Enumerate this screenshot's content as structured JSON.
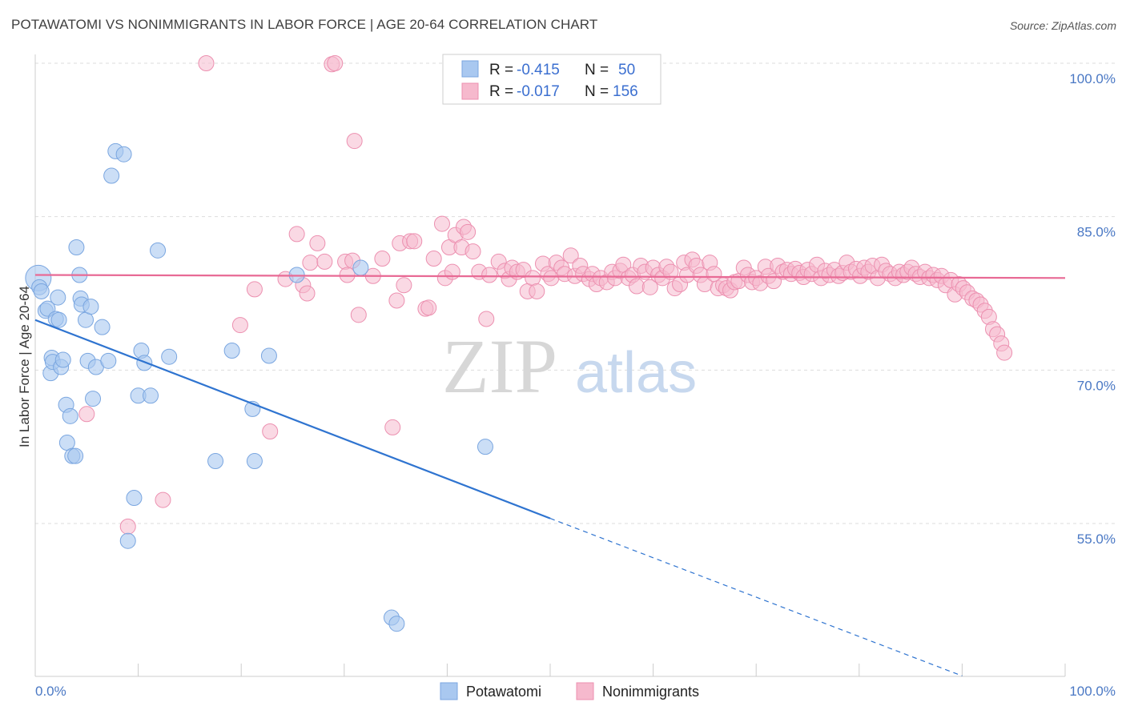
{
  "header": {
    "title": "POTAWATOMI VS NONIMMIGRANTS IN LABOR FORCE | AGE 20-64 CORRELATION CHART",
    "source": "Source: ZipAtlas.com"
  },
  "watermark": {
    "zip": "ZIP",
    "atlas": "atlas"
  },
  "colors": {
    "blue_fill": "#a9c8f0",
    "blue_stroke": "#7aa6e0",
    "blue_line": "#2f74d0",
    "pink_fill": "#f6b9cd",
    "pink_stroke": "#ec90b0",
    "pink_line": "#e86a95",
    "grid": "#dddddd",
    "tick_text": "#4a78c4"
  },
  "legend": {
    "rows": [
      {
        "r_label": "R =",
        "r_value": "-0.415",
        "n_label": "N =",
        "n_value": "50"
      },
      {
        "r_label": "R =",
        "r_value": "-0.017",
        "n_label": "N =",
        "n_value": "156"
      }
    ]
  },
  "chart_data": {
    "type": "scatter",
    "title": "POTAWATOMI VS NONIMMIGRANTS IN LABOR FORCE | AGE 20-64 CORRELATION CHART",
    "xlabel": "",
    "ylabel": "In Labor Force | Age 20-64",
    "xlim": [
      0,
      100
    ],
    "ylim": [
      43,
      101
    ],
    "x_tick_labels": [
      "0.0%",
      "100.0%"
    ],
    "y_ticks": [
      55,
      70,
      85,
      100
    ],
    "y_tick_labels": [
      "55.0%",
      "70.0%",
      "85.0%",
      "100.0%"
    ],
    "grid": true,
    "legend_position": "top-center",
    "series": [
      {
        "name": "Potawatomi",
        "color": "#a9c8f0",
        "r": -0.415,
        "n": 50,
        "trend": {
          "x": [
            0,
            50,
            90
          ],
          "y": [
            74.9,
            55.5,
            40.1
          ],
          "solid_until_x": 50
        },
        "points": [
          [
            0.3,
            79.0
          ],
          [
            0.4,
            78.1
          ],
          [
            0.6,
            77.7
          ],
          [
            1.0,
            75.8
          ],
          [
            1.2,
            76.0
          ],
          [
            1.5,
            69.7
          ],
          [
            1.6,
            71.2
          ],
          [
            1.7,
            70.8
          ],
          [
            2.0,
            75.0
          ],
          [
            2.2,
            77.1
          ],
          [
            2.3,
            74.9
          ],
          [
            2.5,
            70.3
          ],
          [
            2.7,
            71.0
          ],
          [
            3.0,
            66.6
          ],
          [
            3.1,
            62.9
          ],
          [
            3.4,
            65.5
          ],
          [
            3.6,
            61.6
          ],
          [
            3.9,
            61.6
          ],
          [
            4.0,
            82.0
          ],
          [
            4.3,
            79.3
          ],
          [
            4.4,
            77.0
          ],
          [
            4.5,
            76.4
          ],
          [
            4.9,
            74.9
          ],
          [
            5.1,
            70.9
          ],
          [
            5.4,
            76.2
          ],
          [
            5.6,
            67.2
          ],
          [
            5.9,
            70.3
          ],
          [
            6.5,
            74.2
          ],
          [
            7.1,
            70.9
          ],
          [
            7.4,
            89.0
          ],
          [
            7.8,
            91.4
          ],
          [
            8.6,
            91.1
          ],
          [
            9.0,
            53.3
          ],
          [
            9.6,
            57.5
          ],
          [
            10.0,
            67.5
          ],
          [
            10.3,
            71.9
          ],
          [
            10.6,
            70.7
          ],
          [
            11.2,
            67.5
          ],
          [
            11.9,
            81.7
          ],
          [
            13.0,
            71.3
          ],
          [
            17.5,
            61.1
          ],
          [
            19.1,
            71.9
          ],
          [
            21.1,
            66.2
          ],
          [
            21.3,
            61.1
          ],
          [
            22.7,
            71.4
          ],
          [
            25.4,
            79.3
          ],
          [
            31.6,
            80.0
          ],
          [
            34.6,
            45.8
          ],
          [
            35.1,
            45.2
          ],
          [
            43.7,
            62.5
          ]
        ]
      },
      {
        "name": "Nonimmigrants",
        "color": "#f6b9cd",
        "r": -0.017,
        "n": 156,
        "trend": {
          "x": [
            0,
            100
          ],
          "y": [
            79.3,
            79.0
          ]
        },
        "points": [
          [
            5.0,
            65.7
          ],
          [
            9.0,
            54.7
          ],
          [
            12.4,
            57.3
          ],
          [
            16.6,
            100.0
          ],
          [
            19.9,
            74.4
          ],
          [
            21.3,
            77.9
          ],
          [
            22.8,
            64.0
          ],
          [
            24.3,
            78.9
          ],
          [
            25.4,
            83.3
          ],
          [
            26.0,
            78.3
          ],
          [
            26.4,
            77.5
          ],
          [
            26.7,
            80.5
          ],
          [
            27.4,
            82.4
          ],
          [
            28.1,
            80.6
          ],
          [
            28.8,
            99.9
          ],
          [
            29.1,
            100.0
          ],
          [
            30.1,
            80.6
          ],
          [
            30.3,
            79.3
          ],
          [
            30.8,
            80.7
          ],
          [
            31.0,
            92.4
          ],
          [
            31.4,
            75.4
          ],
          [
            32.8,
            79.2
          ],
          [
            33.7,
            80.9
          ],
          [
            34.7,
            64.4
          ],
          [
            35.1,
            76.8
          ],
          [
            35.4,
            82.4
          ],
          [
            35.8,
            78.3
          ],
          [
            36.4,
            82.6
          ],
          [
            36.8,
            82.6
          ],
          [
            37.9,
            76.0
          ],
          [
            38.2,
            76.1
          ],
          [
            38.7,
            80.9
          ],
          [
            39.5,
            84.3
          ],
          [
            39.8,
            79.0
          ],
          [
            40.2,
            82.0
          ],
          [
            40.5,
            79.6
          ],
          [
            40.8,
            83.2
          ],
          [
            41.4,
            82.0
          ],
          [
            41.6,
            84.0
          ],
          [
            42.0,
            83.5
          ],
          [
            42.5,
            81.6
          ],
          [
            43.1,
            79.6
          ],
          [
            43.8,
            75.0
          ],
          [
            44.1,
            79.3
          ],
          [
            45.0,
            80.6
          ],
          [
            45.6,
            79.7
          ],
          [
            46.0,
            78.9
          ],
          [
            46.3,
            80.0
          ],
          [
            46.8,
            79.6
          ],
          [
            47.4,
            79.8
          ],
          [
            47.8,
            77.7
          ],
          [
            48.3,
            79.0
          ],
          [
            48.7,
            77.7
          ],
          [
            49.3,
            80.4
          ],
          [
            49.8,
            79.4
          ],
          [
            50.1,
            79.0
          ],
          [
            50.6,
            80.5
          ],
          [
            51.1,
            80.0
          ],
          [
            51.4,
            79.4
          ],
          [
            52.0,
            81.2
          ],
          [
            52.4,
            79.2
          ],
          [
            52.9,
            80.2
          ],
          [
            53.2,
            79.4
          ],
          [
            53.8,
            78.9
          ],
          [
            54.1,
            79.4
          ],
          [
            54.5,
            78.4
          ],
          [
            54.9,
            79.0
          ],
          [
            55.5,
            78.6
          ],
          [
            56.0,
            79.6
          ],
          [
            56.3,
            79.0
          ],
          [
            56.8,
            79.7
          ],
          [
            57.1,
            80.3
          ],
          [
            57.6,
            79.0
          ],
          [
            58.0,
            79.3
          ],
          [
            58.4,
            78.2
          ],
          [
            58.8,
            80.2
          ],
          [
            59.2,
            79.6
          ],
          [
            59.7,
            78.1
          ],
          [
            60.0,
            80.0
          ],
          [
            60.5,
            79.3
          ],
          [
            60.9,
            79.0
          ],
          [
            61.3,
            80.1
          ],
          [
            61.7,
            79.6
          ],
          [
            62.1,
            78.0
          ],
          [
            62.6,
            78.4
          ],
          [
            63.0,
            80.5
          ],
          [
            63.3,
            79.3
          ],
          [
            63.8,
            80.8
          ],
          [
            64.2,
            80.2
          ],
          [
            64.6,
            79.3
          ],
          [
            65.0,
            78.4
          ],
          [
            65.5,
            80.5
          ],
          [
            65.9,
            79.4
          ],
          [
            66.3,
            78.0
          ],
          [
            66.8,
            78.3
          ],
          [
            67.1,
            78.0
          ],
          [
            67.5,
            77.8
          ],
          [
            67.9,
            78.6
          ],
          [
            68.3,
            78.7
          ],
          [
            68.8,
            80.0
          ],
          [
            69.2,
            79.3
          ],
          [
            69.6,
            78.6
          ],
          [
            70.0,
            79.0
          ],
          [
            70.4,
            78.5
          ],
          [
            70.9,
            80.1
          ],
          [
            71.2,
            79.2
          ],
          [
            71.7,
            78.7
          ],
          [
            72.1,
            80.2
          ],
          [
            72.6,
            79.6
          ],
          [
            73.0,
            79.8
          ],
          [
            73.4,
            79.4
          ],
          [
            73.8,
            79.9
          ],
          [
            74.2,
            79.5
          ],
          [
            74.6,
            79.1
          ],
          [
            75.0,
            79.8
          ],
          [
            75.4,
            79.4
          ],
          [
            75.9,
            80.3
          ],
          [
            76.3,
            79.0
          ],
          [
            76.7,
            79.7
          ],
          [
            77.1,
            79.3
          ],
          [
            77.6,
            79.8
          ],
          [
            78.0,
            79.2
          ],
          [
            78.4,
            79.5
          ],
          [
            78.8,
            80.5
          ],
          [
            79.2,
            79.6
          ],
          [
            79.7,
            79.9
          ],
          [
            80.1,
            79.2
          ],
          [
            80.5,
            80.0
          ],
          [
            80.9,
            79.6
          ],
          [
            81.3,
            80.2
          ],
          [
            81.8,
            79.0
          ],
          [
            82.2,
            80.3
          ],
          [
            82.6,
            79.7
          ],
          [
            83.0,
            79.4
          ],
          [
            83.5,
            79.0
          ],
          [
            83.9,
            79.6
          ],
          [
            84.3,
            79.3
          ],
          [
            84.7,
            79.6
          ],
          [
            85.1,
            80.0
          ],
          [
            85.5,
            79.4
          ],
          [
            85.9,
            79.1
          ],
          [
            86.4,
            79.6
          ],
          [
            86.8,
            79.0
          ],
          [
            87.2,
            79.3
          ],
          [
            87.6,
            78.8
          ],
          [
            88.0,
            79.2
          ],
          [
            88.4,
            78.3
          ],
          [
            88.9,
            78.8
          ],
          [
            89.3,
            77.4
          ],
          [
            89.7,
            78.4
          ],
          [
            90.1,
            78.0
          ],
          [
            90.5,
            77.6
          ],
          [
            91.0,
            77.0
          ],
          [
            91.4,
            76.8
          ],
          [
            91.8,
            76.4
          ],
          [
            92.2,
            75.8
          ],
          [
            92.6,
            75.2
          ],
          [
            93.0,
            74.0
          ],
          [
            93.4,
            73.5
          ],
          [
            93.8,
            72.6
          ],
          [
            94.1,
            71.7
          ]
        ]
      }
    ]
  },
  "bottom_legend": {
    "items": [
      "Potawatomi",
      "Nonimmigrants"
    ]
  }
}
